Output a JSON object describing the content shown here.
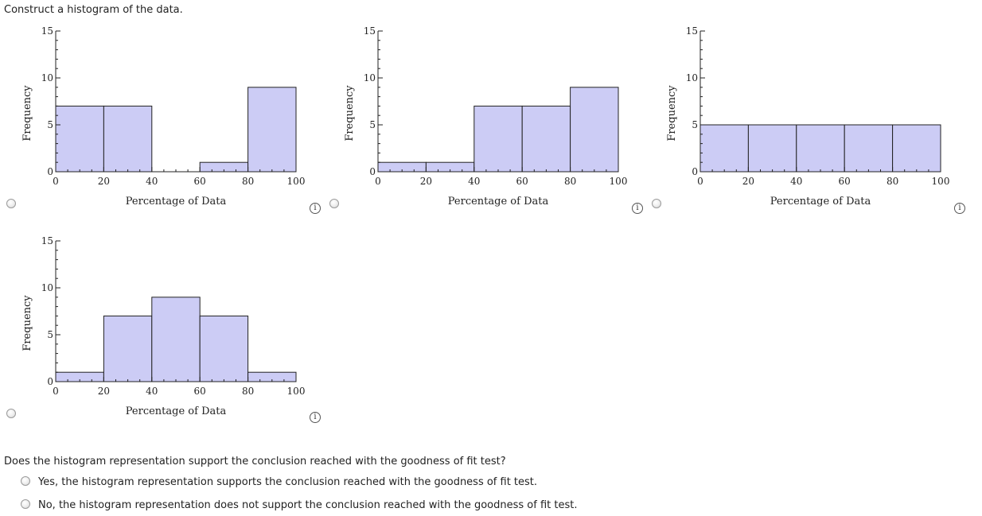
{
  "prompt": "Construct a histogram of the data.",
  "info_glyph": "i",
  "options": [
    {
      "chart_data": {
        "type": "bar",
        "bins": [
          [
            0,
            20
          ],
          [
            20,
            40
          ],
          [
            40,
            60
          ],
          [
            60,
            80
          ],
          [
            80,
            100
          ]
        ],
        "values": [
          7,
          7,
          0,
          1,
          9
        ],
        "xlabel": "Percentage of Data",
        "ylabel": "Frequency",
        "xlim": [
          0,
          100
        ],
        "ylim": [
          0,
          15
        ],
        "xticks": [
          "0",
          "20",
          "40",
          "60",
          "80",
          "100"
        ],
        "yticks": [
          "0",
          "5",
          "10",
          "15"
        ],
        "bar_color": "#ccccf5",
        "grid": false
      }
    },
    {
      "chart_data": {
        "type": "bar",
        "bins": [
          [
            0,
            20
          ],
          [
            20,
            40
          ],
          [
            40,
            60
          ],
          [
            60,
            80
          ],
          [
            80,
            100
          ]
        ],
        "values": [
          1,
          1,
          7,
          7,
          9
        ],
        "xlabel": "Percentage of Data",
        "ylabel": "Frequency",
        "xlim": [
          0,
          100
        ],
        "ylim": [
          0,
          15
        ],
        "xticks": [
          "0",
          "20",
          "40",
          "60",
          "80",
          "100"
        ],
        "yticks": [
          "0",
          "5",
          "10",
          "15"
        ],
        "bar_color": "#ccccf5",
        "grid": false
      }
    },
    {
      "chart_data": {
        "type": "bar",
        "bins": [
          [
            0,
            20
          ],
          [
            20,
            40
          ],
          [
            40,
            60
          ],
          [
            60,
            80
          ],
          [
            80,
            100
          ]
        ],
        "values": [
          5,
          5,
          5,
          5,
          5
        ],
        "xlabel": "Percentage of Data",
        "ylabel": "Frequency",
        "xlim": [
          0,
          100
        ],
        "ylim": [
          0,
          15
        ],
        "xticks": [
          "0",
          "20",
          "40",
          "60",
          "80",
          "100"
        ],
        "yticks": [
          "0",
          "5",
          "10",
          "15"
        ],
        "bar_color": "#ccccf5",
        "grid": false
      }
    },
    {
      "chart_data": {
        "type": "bar",
        "bins": [
          [
            0,
            20
          ],
          [
            20,
            40
          ],
          [
            40,
            60
          ],
          [
            60,
            80
          ],
          [
            80,
            100
          ]
        ],
        "values": [
          1,
          7,
          9,
          7,
          1
        ],
        "xlabel": "Percentage of Data",
        "ylabel": "Frequency",
        "xlim": [
          0,
          100
        ],
        "ylim": [
          0,
          15
        ],
        "xticks": [
          "0",
          "20",
          "40",
          "60",
          "80",
          "100"
        ],
        "yticks": [
          "0",
          "5",
          "10",
          "15"
        ],
        "bar_color": "#ccccf5",
        "grid": false
      }
    }
  ],
  "question": "Does the histogram representation support the conclusion reached with the goodness of fit test?",
  "answers": [
    "Yes, the histogram representation supports the conclusion reached with the goodness of fit test.",
    "No, the histogram representation does not support the conclusion reached with the goodness of fit test."
  ]
}
